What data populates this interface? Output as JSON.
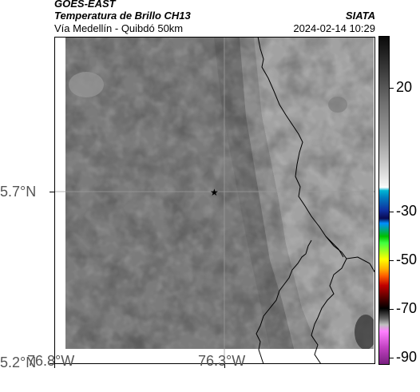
{
  "header": {
    "satellite": "GOES-EAST",
    "product": "Temperatura de Brillo CH13",
    "region": "Vía Medellín - Quibdó 50km",
    "org": "SIATA",
    "datetime": "2024-02-14 10:29"
  },
  "axes": {
    "y_labels": [
      "5.7°N",
      "5.2°N"
    ],
    "x_labels": [
      "76.8°W",
      "76.3°W"
    ]
  },
  "colorbar": {
    "labels": [
      "20",
      "-30",
      "-50",
      "-70",
      "-90"
    ]
  },
  "map": {
    "marker": "star-icon",
    "colors": {
      "background": "#7a7a7a",
      "eastern_region": "#a0a0a0",
      "border_line": "#000000",
      "gridline": "#9a9a9a"
    }
  }
}
